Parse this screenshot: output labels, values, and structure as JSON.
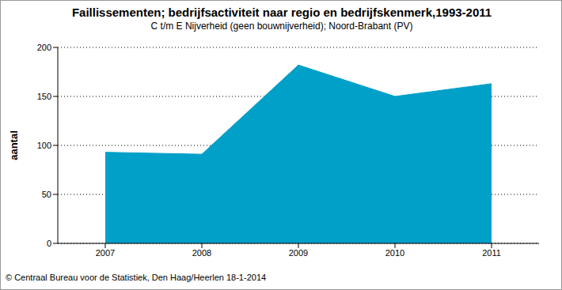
{
  "chart_data": {
    "type": "area",
    "title": "Faillissementen; bedrijfsactiviteit naar regio en bedrijfskenmerk,1993-2011",
    "subtitle": "C t/m E Nijverheid (geen bouwnijverheid); Noord-Brabant (PV)",
    "y_label": "aantal",
    "source": "© Centraal Bureau voor de Statistiek, Den Haag/Heerlen 18-1-2014",
    "categories": [
      "2007",
      "2008",
      "2009",
      "2010",
      "2011"
    ],
    "values": [
      93,
      91,
      182,
      150,
      163
    ],
    "color": "#00a0c8",
    "ylim": [
      0,
      200
    ],
    "yticks": [
      0,
      50,
      100,
      150,
      200
    ],
    "grid": true
  }
}
